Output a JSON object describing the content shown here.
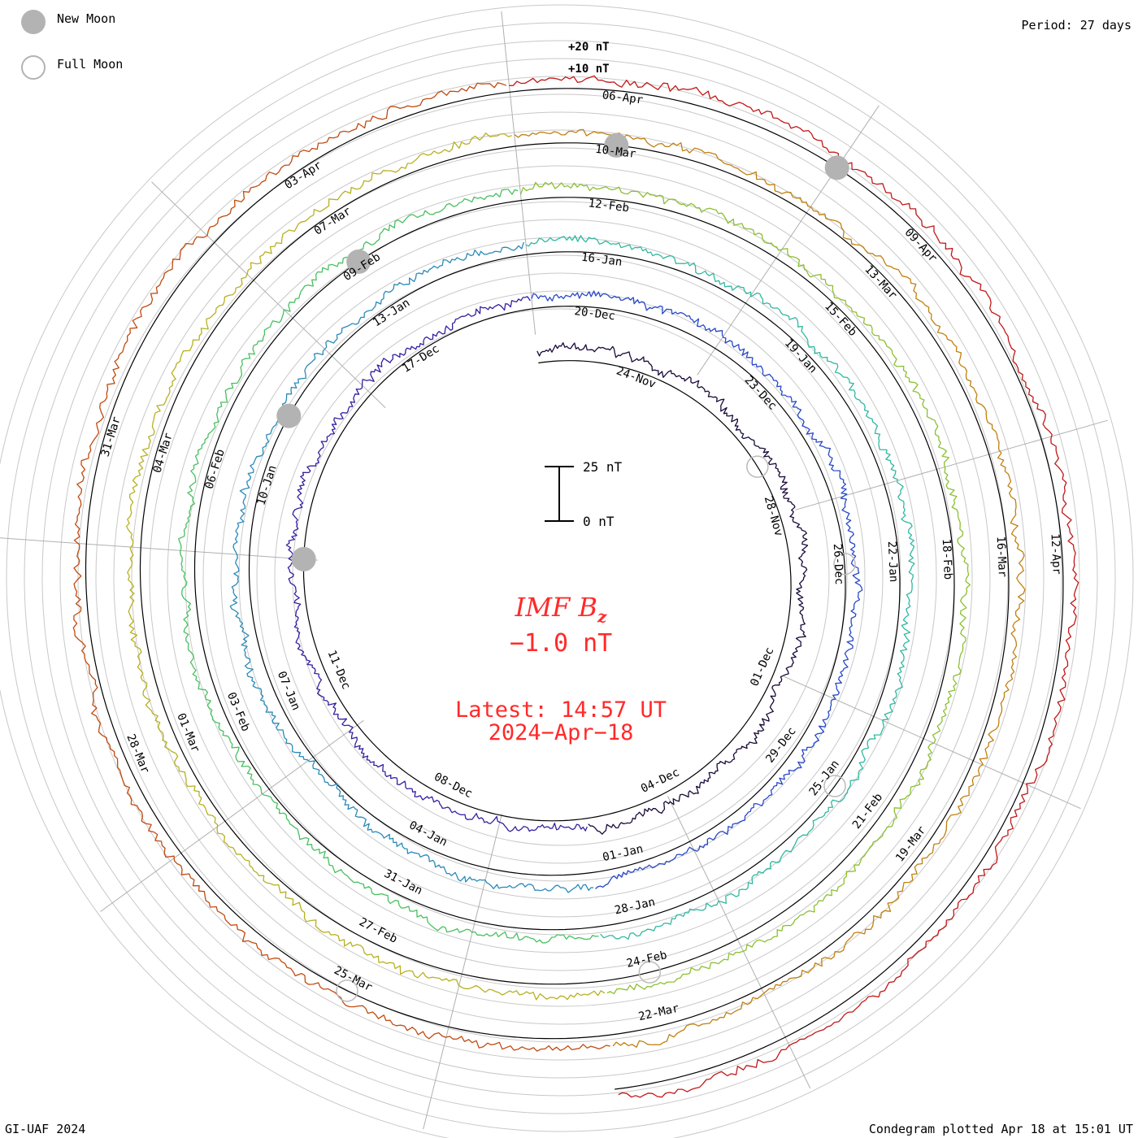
{
  "legend": {
    "new_moon_label": "New Moon",
    "full_moon_label": "Full Moon",
    "new_moon_color": "#b3b3b3"
  },
  "period_label": "Period: 27 days",
  "footer_left": "GI-UAF 2024",
  "footer_right": "Condegram plotted Apr 18 at 15:01 UT",
  "center": {
    "title_main": "IMF B",
    "title_sub": "z",
    "current_value": "−1.0 nT",
    "latest_time": "Latest: 14:57 UT",
    "latest_date": "2024−Apr−18",
    "text_color": "#ff2a2a"
  },
  "chart_data": {
    "type": "spiral",
    "title": "IMF Bz",
    "units": "nT",
    "period_days": 27,
    "scale_bar": {
      "top_label": "25 nT",
      "bottom_label": "0 nT",
      "range": [
        0,
        25
      ]
    },
    "ring_scale_labels": [
      "+20 nT",
      "+10 nT"
    ],
    "ring_offsets_nT": [
      -10,
      10,
      20
    ],
    "start_date": "2023-11-22",
    "end_date": "2024-04-18",
    "revolutions": 5.5,
    "series_colors": [
      "#1a0a3a",
      "#3320a0",
      "#2848c8",
      "#2a8ab8",
      "#30b8a0",
      "#48c060",
      "#8cc030",
      "#b8b020",
      "#c08010",
      "#c04a10",
      "#c01818"
    ],
    "date_labels": [
      {
        "text": "24-Nov",
        "day": 2
      },
      {
        "text": "28-Nov",
        "day": 6
      },
      {
        "text": "01-Dec",
        "day": 9
      },
      {
        "text": "04-Dec",
        "day": 12
      },
      {
        "text": "08-Dec",
        "day": 16
      },
      {
        "text": "11-Dec",
        "day": 19
      },
      {
        "text": "17-Dec",
        "day": 25
      },
      {
        "text": "20-Dec",
        "day": 28
      },
      {
        "text": "23-Dec",
        "day": 31
      },
      {
        "text": "26-Dec",
        "day": 34
      },
      {
        "text": "29-Dec",
        "day": 37
      },
      {
        "text": "01-Jan",
        "day": 40
      },
      {
        "text": "04-Jan",
        "day": 43
      },
      {
        "text": "07-Jan",
        "day": 46
      },
      {
        "text": "10-Jan",
        "day": 49
      },
      {
        "text": "13-Jan",
        "day": 52
      },
      {
        "text": "16-Jan",
        "day": 55
      },
      {
        "text": "19-Jan",
        "day": 58
      },
      {
        "text": "22-Jan",
        "day": 61
      },
      {
        "text": "25-Jan",
        "day": 64
      },
      {
        "text": "28-Jan",
        "day": 67
      },
      {
        "text": "31-Jan",
        "day": 70
      },
      {
        "text": "03-Feb",
        "day": 73
      },
      {
        "text": "06-Feb",
        "day": 76
      },
      {
        "text": "09-Feb",
        "day": 79
      },
      {
        "text": "12-Feb",
        "day": 82
      },
      {
        "text": "15-Feb",
        "day": 85
      },
      {
        "text": "18-Feb",
        "day": 88
      },
      {
        "text": "21-Feb",
        "day": 91
      },
      {
        "text": "24-Feb",
        "day": 94
      },
      {
        "text": "27-Feb",
        "day": 97
      },
      {
        "text": "01-Mar",
        "day": 100
      },
      {
        "text": "04-Mar",
        "day": 103
      },
      {
        "text": "07-Mar",
        "day": 106
      },
      {
        "text": "10-Mar",
        "day": 109
      },
      {
        "text": "13-Mar",
        "day": 112
      },
      {
        "text": "16-Mar",
        "day": 115
      },
      {
        "text": "19-Mar",
        "day": 118
      },
      {
        "text": "22-Mar",
        "day": 121
      },
      {
        "text": "25-Mar",
        "day": 124
      },
      {
        "text": "28-Mar",
        "day": 127
      },
      {
        "text": "31-Mar",
        "day": 130
      },
      {
        "text": "03-Apr",
        "day": 133
      },
      {
        "text": "06-Apr",
        "day": 136
      },
      {
        "text": "09-Apr",
        "day": 139
      },
      {
        "text": "12-Apr",
        "day": 142
      }
    ],
    "new_moons": [
      {
        "date": "13-Dec"
      },
      {
        "date": "11-Jan"
      },
      {
        "date": "09-Feb"
      },
      {
        "date": "10-Mar"
      },
      {
        "date": "08-Apr"
      }
    ],
    "full_moons": [
      {
        "date": "27-Nov"
      },
      {
        "date": "26-Dec"
      },
      {
        "date": "25-Jan"
      },
      {
        "date": "24-Feb"
      },
      {
        "date": "25-Mar"
      }
    ]
  }
}
